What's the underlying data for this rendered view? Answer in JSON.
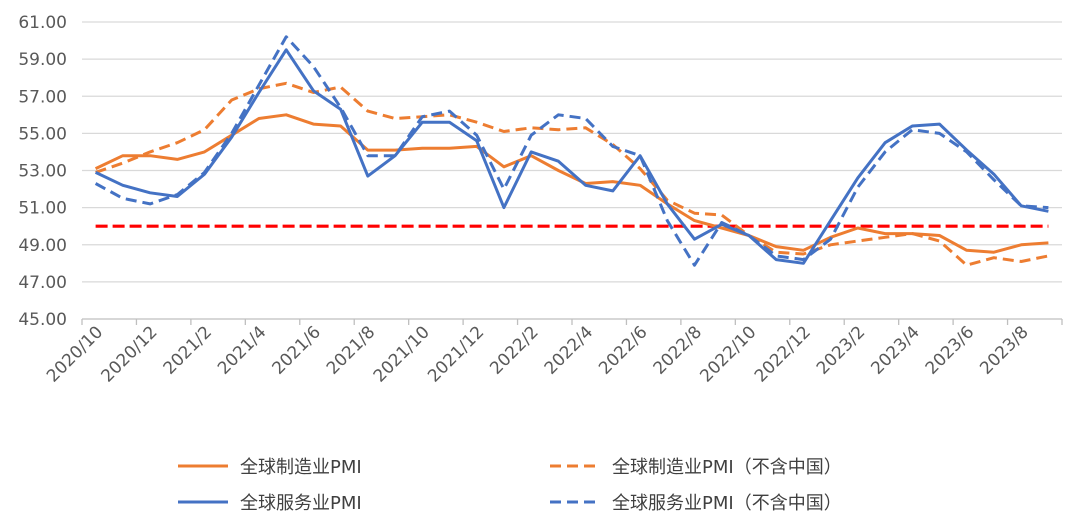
{
  "chart_data": {
    "type": "line",
    "title": "",
    "xlabel": "",
    "ylabel": "",
    "ylim": [
      45,
      61
    ],
    "yticks": [
      "45.00",
      "47.00",
      "49.00",
      "51.00",
      "53.00",
      "55.00",
      "57.00",
      "59.00",
      "61.00"
    ],
    "grid": true,
    "legend_placement": "bottom",
    "x": [
      "2020/10",
      "2020/11",
      "2020/12",
      "2021/1",
      "2021/2",
      "2021/3",
      "2021/4",
      "2021/5",
      "2021/6",
      "2021/7",
      "2021/8",
      "2021/9",
      "2021/10",
      "2021/11",
      "2021/12",
      "2022/1",
      "2022/2",
      "2022/3",
      "2022/4",
      "2022/5",
      "2022/6",
      "2022/7",
      "2022/8",
      "2022/9",
      "2022/10",
      "2022/11",
      "2022/12",
      "2023/1",
      "2023/2",
      "2023/3",
      "2023/4",
      "2023/5",
      "2023/6",
      "2023/7",
      "2023/8",
      "2023/9"
    ],
    "xtick_labels": [
      "2020/10",
      "2020/12",
      "2021/2",
      "2021/4",
      "2021/6",
      "2021/8",
      "2021/10",
      "2021/12",
      "2022/2",
      "2022/4",
      "2022/6",
      "2022/8",
      "2022/10",
      "2022/12",
      "2023/2",
      "2023/4",
      "2023/6",
      "2023/8"
    ],
    "reference_line": {
      "value": 50,
      "color": "#FF0000",
      "style": "dashed"
    },
    "series": [
      {
        "name": "全球制造业PMI",
        "color": "#ED7D31",
        "style": "solid",
        "values": [
          53.1,
          53.8,
          53.8,
          53.6,
          54.0,
          54.9,
          55.8,
          56.0,
          55.5,
          55.4,
          54.1,
          54.1,
          54.2,
          54.2,
          54.3,
          53.2,
          53.8,
          53.0,
          52.3,
          52.4,
          52.2,
          51.2,
          50.3,
          49.9,
          49.5,
          48.9,
          48.7,
          49.4,
          49.9,
          49.6,
          49.6,
          49.5,
          48.7,
          48.6,
          49.0,
          49.1
        ]
      },
      {
        "name": "全球制造业PMI（不含中国）",
        "color": "#ED7D31",
        "style": "dashed",
        "values": [
          52.9,
          53.4,
          54.0,
          54.5,
          55.2,
          56.8,
          57.4,
          57.7,
          57.2,
          57.5,
          56.2,
          55.8,
          55.9,
          56.0,
          55.6,
          55.1,
          55.3,
          55.2,
          55.3,
          54.4,
          53.1,
          51.4,
          50.7,
          50.6,
          49.5,
          48.6,
          48.5,
          49.0,
          49.2,
          49.4,
          49.6,
          49.2,
          47.9,
          48.3,
          48.1,
          48.4
        ]
      },
      {
        "name": "全球服务业PMI",
        "color": "#4472C4",
        "style": "solid",
        "values": [
          52.9,
          52.2,
          51.8,
          51.6,
          52.8,
          54.8,
          57.2,
          59.5,
          57.3,
          56.3,
          52.7,
          53.8,
          55.6,
          55.6,
          54.6,
          51.0,
          54.0,
          53.5,
          52.2,
          51.9,
          53.8,
          51.2,
          49.3,
          50.1,
          49.5,
          48.2,
          48.0,
          50.3,
          52.6,
          54.5,
          55.4,
          55.5,
          54.1,
          52.8,
          51.1,
          50.8
        ]
      },
      {
        "name": "全球服务业PMI（不含中国）",
        "color": "#4472C4",
        "style": "dashed",
        "values": [
          52.3,
          51.5,
          51.2,
          51.7,
          52.9,
          55.0,
          57.6,
          60.2,
          58.6,
          56.4,
          53.8,
          53.8,
          55.9,
          56.2,
          54.9,
          52.0,
          54.9,
          56.0,
          55.8,
          54.3,
          53.8,
          50.3,
          47.9,
          50.2,
          49.5,
          48.4,
          48.2,
          49.3,
          52.1,
          54.0,
          55.2,
          55.0,
          54.0,
          52.5,
          51.1,
          51.0
        ]
      }
    ]
  }
}
